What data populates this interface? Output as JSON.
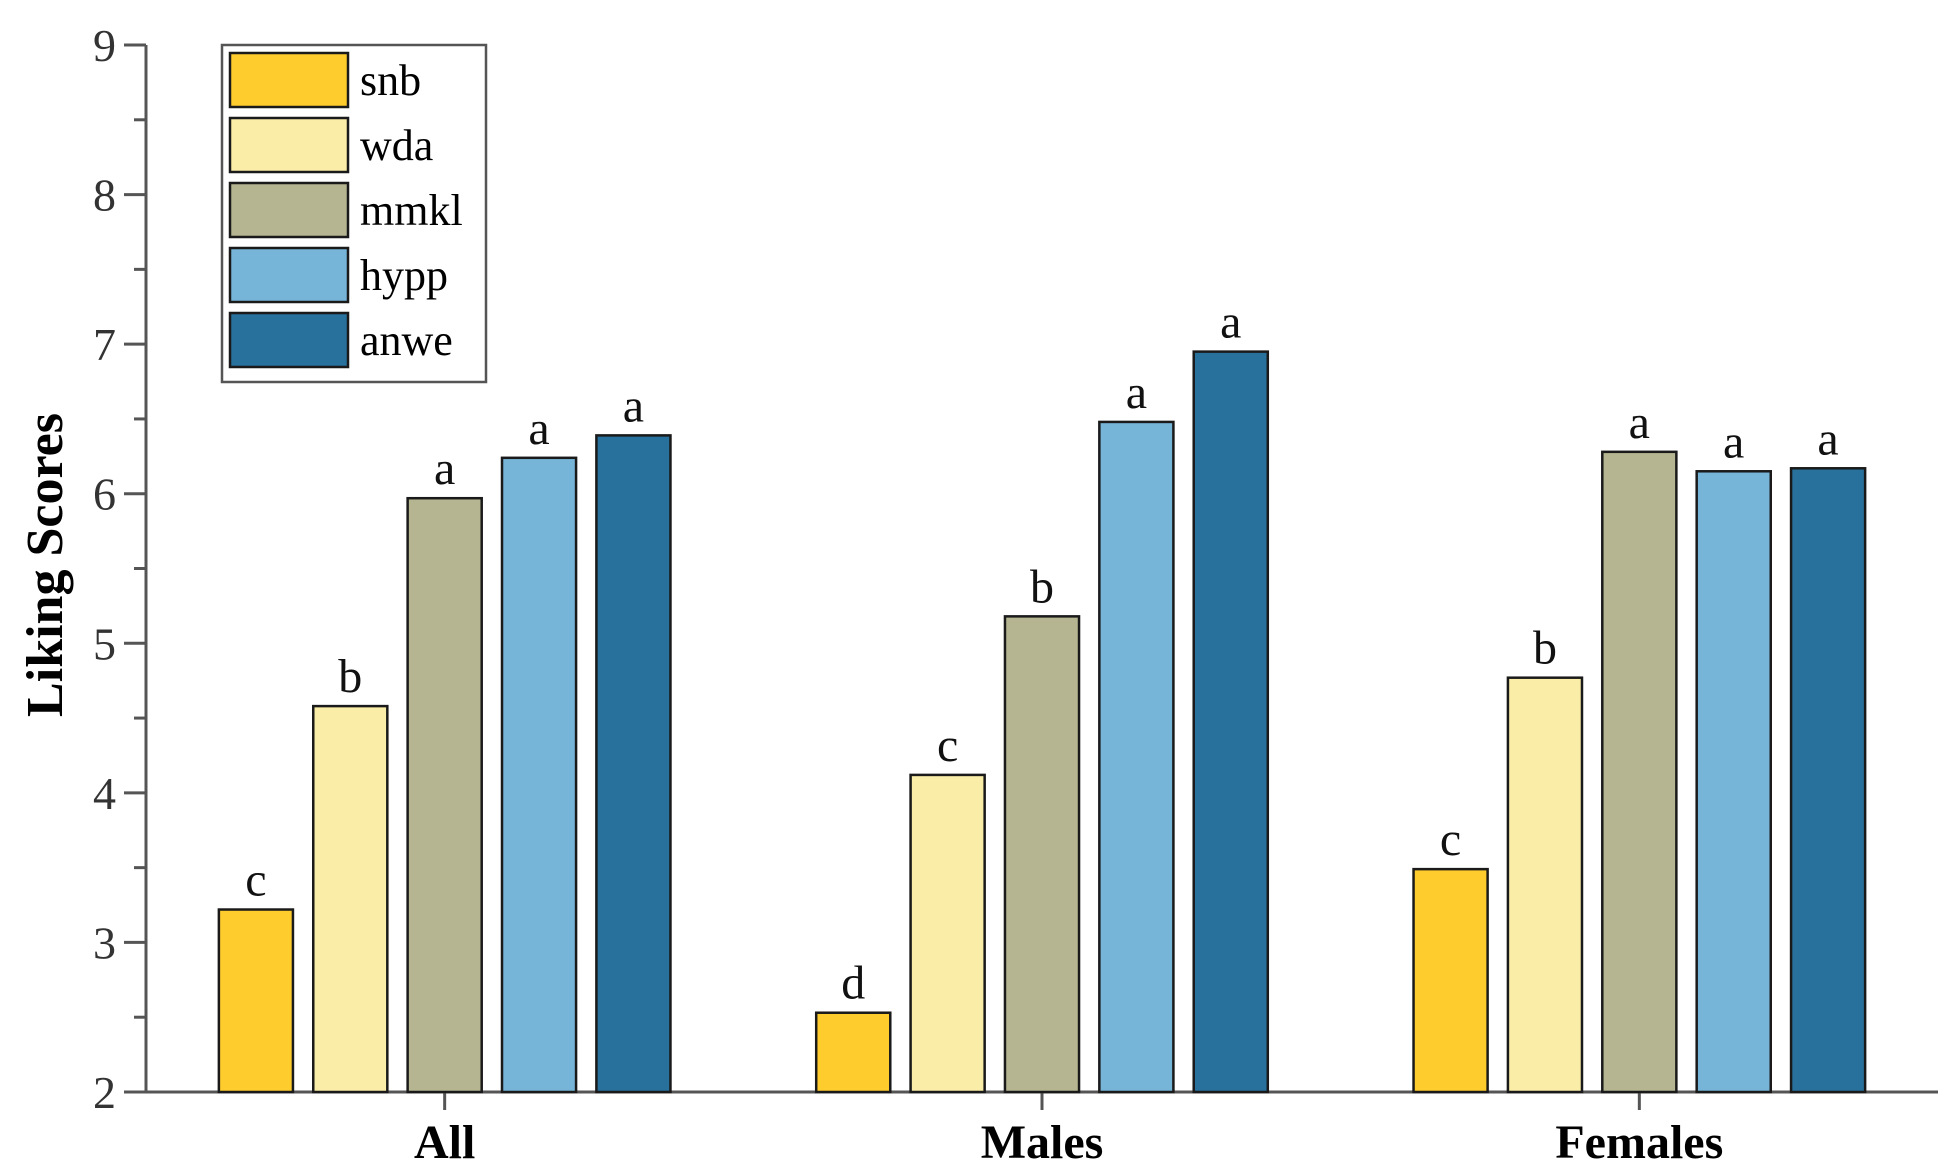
{
  "chart_data": {
    "type": "bar",
    "title": "",
    "xlabel": "",
    "ylabel": "Liking Scores",
    "ylim": [
      2,
      9
    ],
    "yticks": [
      2,
      3,
      4,
      5,
      6,
      7,
      8,
      9
    ],
    "grid": false,
    "legend_position": "top-left",
    "categories": [
      "All",
      "Males",
      "Females"
    ],
    "series": [
      {
        "name": "snb",
        "color": "#FFCC2E",
        "values": [
          3.22,
          2.53,
          3.49
        ],
        "letters": [
          "c",
          "d",
          "c"
        ]
      },
      {
        "name": "wda",
        "color": "#F9EDA8",
        "values": [
          4.58,
          4.12,
          4.77
        ],
        "letters": [
          "b",
          "c",
          "b"
        ]
      },
      {
        "name": "mmkl",
        "color": "#B5B591",
        "values": [
          5.97,
          5.18,
          6.28
        ],
        "letters": [
          "a",
          "b",
          "a"
        ]
      },
      {
        "name": "hypp",
        "color": "#76B4D8",
        "values": [
          6.24,
          6.48,
          6.15
        ],
        "letters": [
          "a",
          "a",
          "a"
        ]
      },
      {
        "name": "anwe",
        "color": "#27719C",
        "values": [
          6.39,
          6.95,
          6.17
        ],
        "letters": [
          "a",
          "a",
          "a"
        ]
      }
    ]
  }
}
